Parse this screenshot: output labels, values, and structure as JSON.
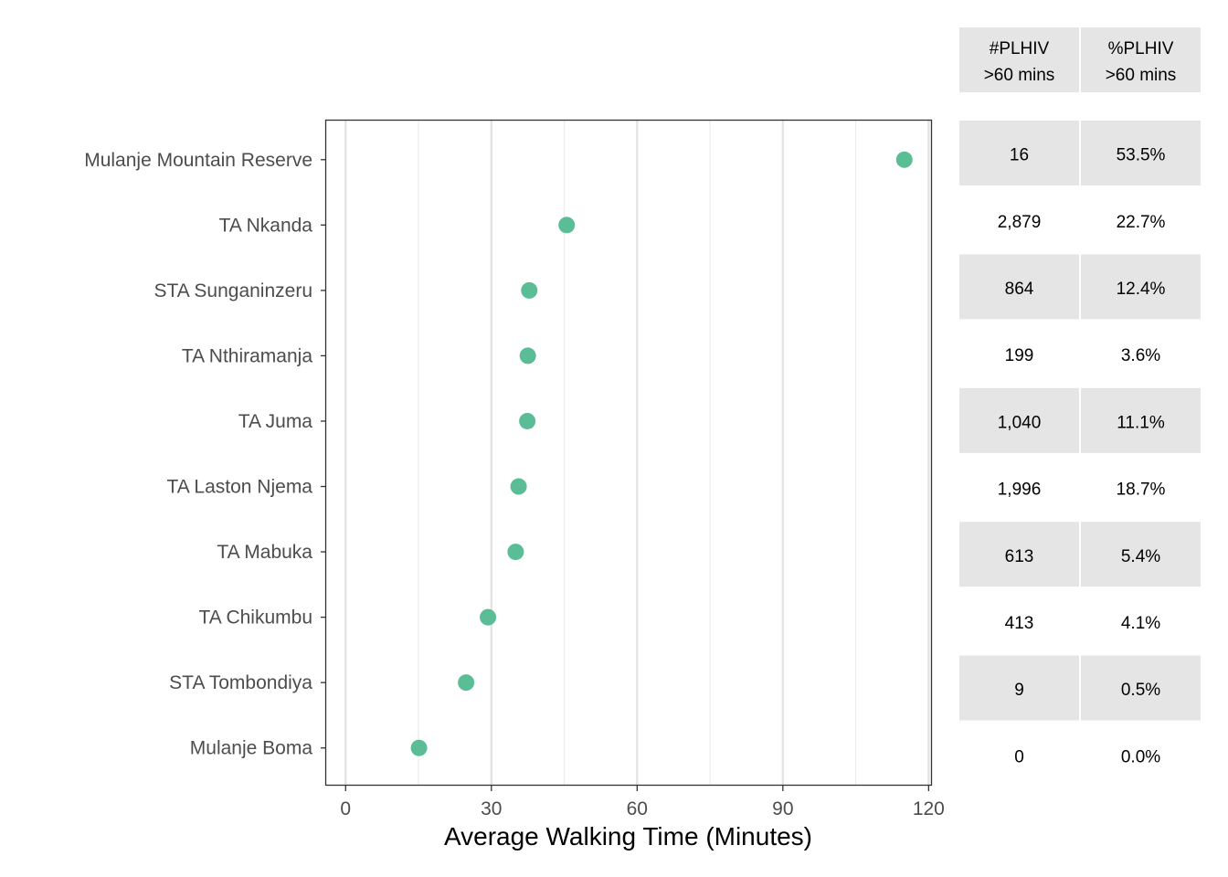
{
  "chart_data": {
    "type": "scatter",
    "xlabel": "Average Walking Time (Minutes)",
    "xlim": [
      -4,
      120.5
    ],
    "x_ticks": [
      0,
      30,
      60,
      90,
      120
    ],
    "x_minor_ticks": [
      15,
      45,
      75,
      105
    ],
    "grid": "vertical",
    "point_color": "#5bbd96",
    "categories": [
      "Mulanje Mountain Reserve",
      "TA Nkanda",
      "STA Sunganinzeru",
      "TA Nthiramanja",
      "TA Juma",
      "TA Laston Njema",
      "TA Mabuka",
      "TA Chikumbu",
      "STA Tombondiya",
      "Mulanje Boma"
    ],
    "values": [
      115,
      45.5,
      37.8,
      37.5,
      37.4,
      35.6,
      35,
      29.3,
      24.8,
      15.1
    ]
  },
  "table": {
    "headers": [
      {
        "line1": "#PLHIV",
        "line2": ">60 mins"
      },
      {
        "line1": "%PLHIV",
        "line2": ">60 mins"
      }
    ],
    "rows": [
      {
        "count": "16",
        "pct": "53.5%"
      },
      {
        "count": "2,879",
        "pct": "22.7%"
      },
      {
        "count": "864",
        "pct": "12.4%"
      },
      {
        "count": "199",
        "pct": "3.6%"
      },
      {
        "count": "1,040",
        "pct": "11.1%"
      },
      {
        "count": "1,996",
        "pct": "18.7%"
      },
      {
        "count": "613",
        "pct": "5.4%"
      },
      {
        "count": "413",
        "pct": "4.1%"
      },
      {
        "count": "9",
        "pct": "0.5%"
      },
      {
        "count": "0",
        "pct": "0.0%"
      }
    ],
    "shade_color": "#e5e5e5"
  }
}
